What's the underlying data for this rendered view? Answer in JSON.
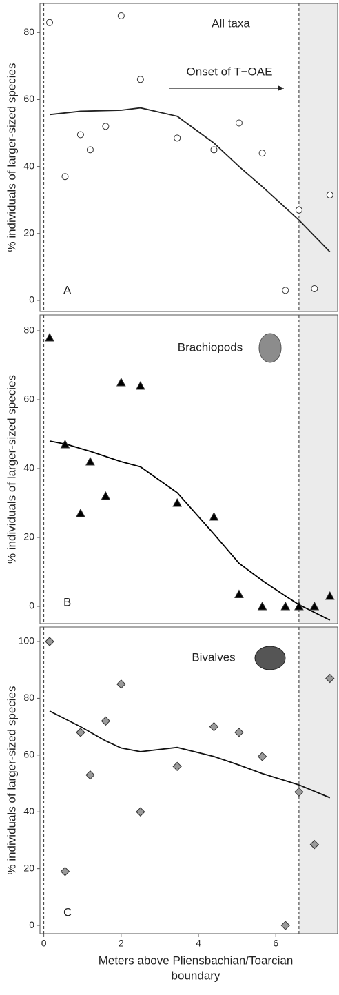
{
  "chart_data": [
    {
      "type": "scatter",
      "title": "All taxa",
      "panel_label": "A",
      "ylabel": "% individuals of larger-sized species",
      "annotation": "Onset of T−OAE",
      "marker": "circle",
      "color": "#ffffff",
      "line_color": "#222222",
      "x": [
        0.15,
        0.55,
        0.95,
        1.2,
        1.6,
        2.0,
        2.5,
        3.45,
        4.4,
        5.05,
        5.65,
        6.6,
        6.25,
        7.0,
        7.4
      ],
      "y": [
        83,
        37,
        49.5,
        45,
        52,
        85,
        66,
        48.5,
        45,
        53,
        44,
        27,
        3,
        3.5,
        31.5
      ],
      "trend_x": [
        0.15,
        0.95,
        2.0,
        2.5,
        3.45,
        4.4,
        5.05,
        5.65,
        6.6,
        7.4
      ],
      "trend_y": [
        55.5,
        56.5,
        56.8,
        57.5,
        55,
        47,
        40,
        34,
        24,
        14.5
      ],
      "ylim": [
        -3.3,
        88.7
      ],
      "yticks": [
        0,
        20,
        40,
        60,
        80
      ],
      "dashed_x": [
        0,
        6.6
      ]
    },
    {
      "type": "scatter",
      "title": "Brachiopods",
      "panel_label": "B",
      "ylabel": "% individuals of larger-sized species",
      "marker": "triangle",
      "color": "#000000",
      "line_color": "#000000",
      "x": [
        0.15,
        0.55,
        0.95,
        1.2,
        1.6,
        2.0,
        2.5,
        3.45,
        4.4,
        5.05,
        5.65,
        6.25,
        6.6,
        7.0,
        7.4
      ],
      "y": [
        78,
        47,
        27,
        42,
        32,
        65,
        64,
        30,
        26,
        3.5,
        0,
        0,
        0,
        0,
        3
      ],
      "trend_x": [
        0.15,
        0.6,
        1.2,
        2.0,
        2.5,
        3.45,
        4.4,
        5.05,
        5.65,
        6.25,
        6.6,
        7.4
      ],
      "trend_y": [
        48,
        47,
        45,
        42,
        40.5,
        33,
        21,
        12.5,
        7.5,
        3,
        0.5,
        -4
      ],
      "ylim": [
        -5,
        84.6
      ],
      "yticks": [
        0,
        20,
        40,
        60,
        80
      ],
      "dashed_x": [
        0,
        6.6
      ]
    },
    {
      "type": "scatter",
      "title": "Bivalves",
      "panel_label": "C",
      "ylabel": "% individuals of larger-sized species",
      "marker": "diamond",
      "color": "#9a9a9a",
      "line_color": "#111111",
      "x": [
        0.15,
        0.55,
        0.95,
        1.2,
        1.6,
        2.0,
        2.5,
        3.45,
        4.4,
        5.05,
        5.65,
        6.25,
        6.6,
        7.0,
        7.4
      ],
      "y": [
        100,
        19,
        68,
        53,
        72,
        85,
        40,
        56,
        70,
        68,
        59.5,
        0,
        47,
        28.5,
        87
      ],
      "trend_x": [
        0.15,
        0.95,
        1.6,
        2.0,
        2.5,
        3.45,
        4.4,
        5.05,
        5.65,
        6.6,
        7.4
      ],
      "trend_y": [
        75.5,
        70,
        65,
        62.5,
        61.2,
        62.7,
        59.5,
        56.5,
        53.5,
        49.5,
        45
      ],
      "ylim": [
        -2.9,
        105.1
      ],
      "yticks": [
        0,
        20,
        40,
        60,
        80,
        100
      ],
      "dashed_x": [
        0,
        6.6
      ],
      "xlim": [
        -0.1,
        7.6
      ],
      "xticks": [
        0,
        2,
        4,
        6
      ],
      "xlabel": [
        "Meters above Pliensbachian/Toarcian",
        "boundary"
      ]
    }
  ]
}
